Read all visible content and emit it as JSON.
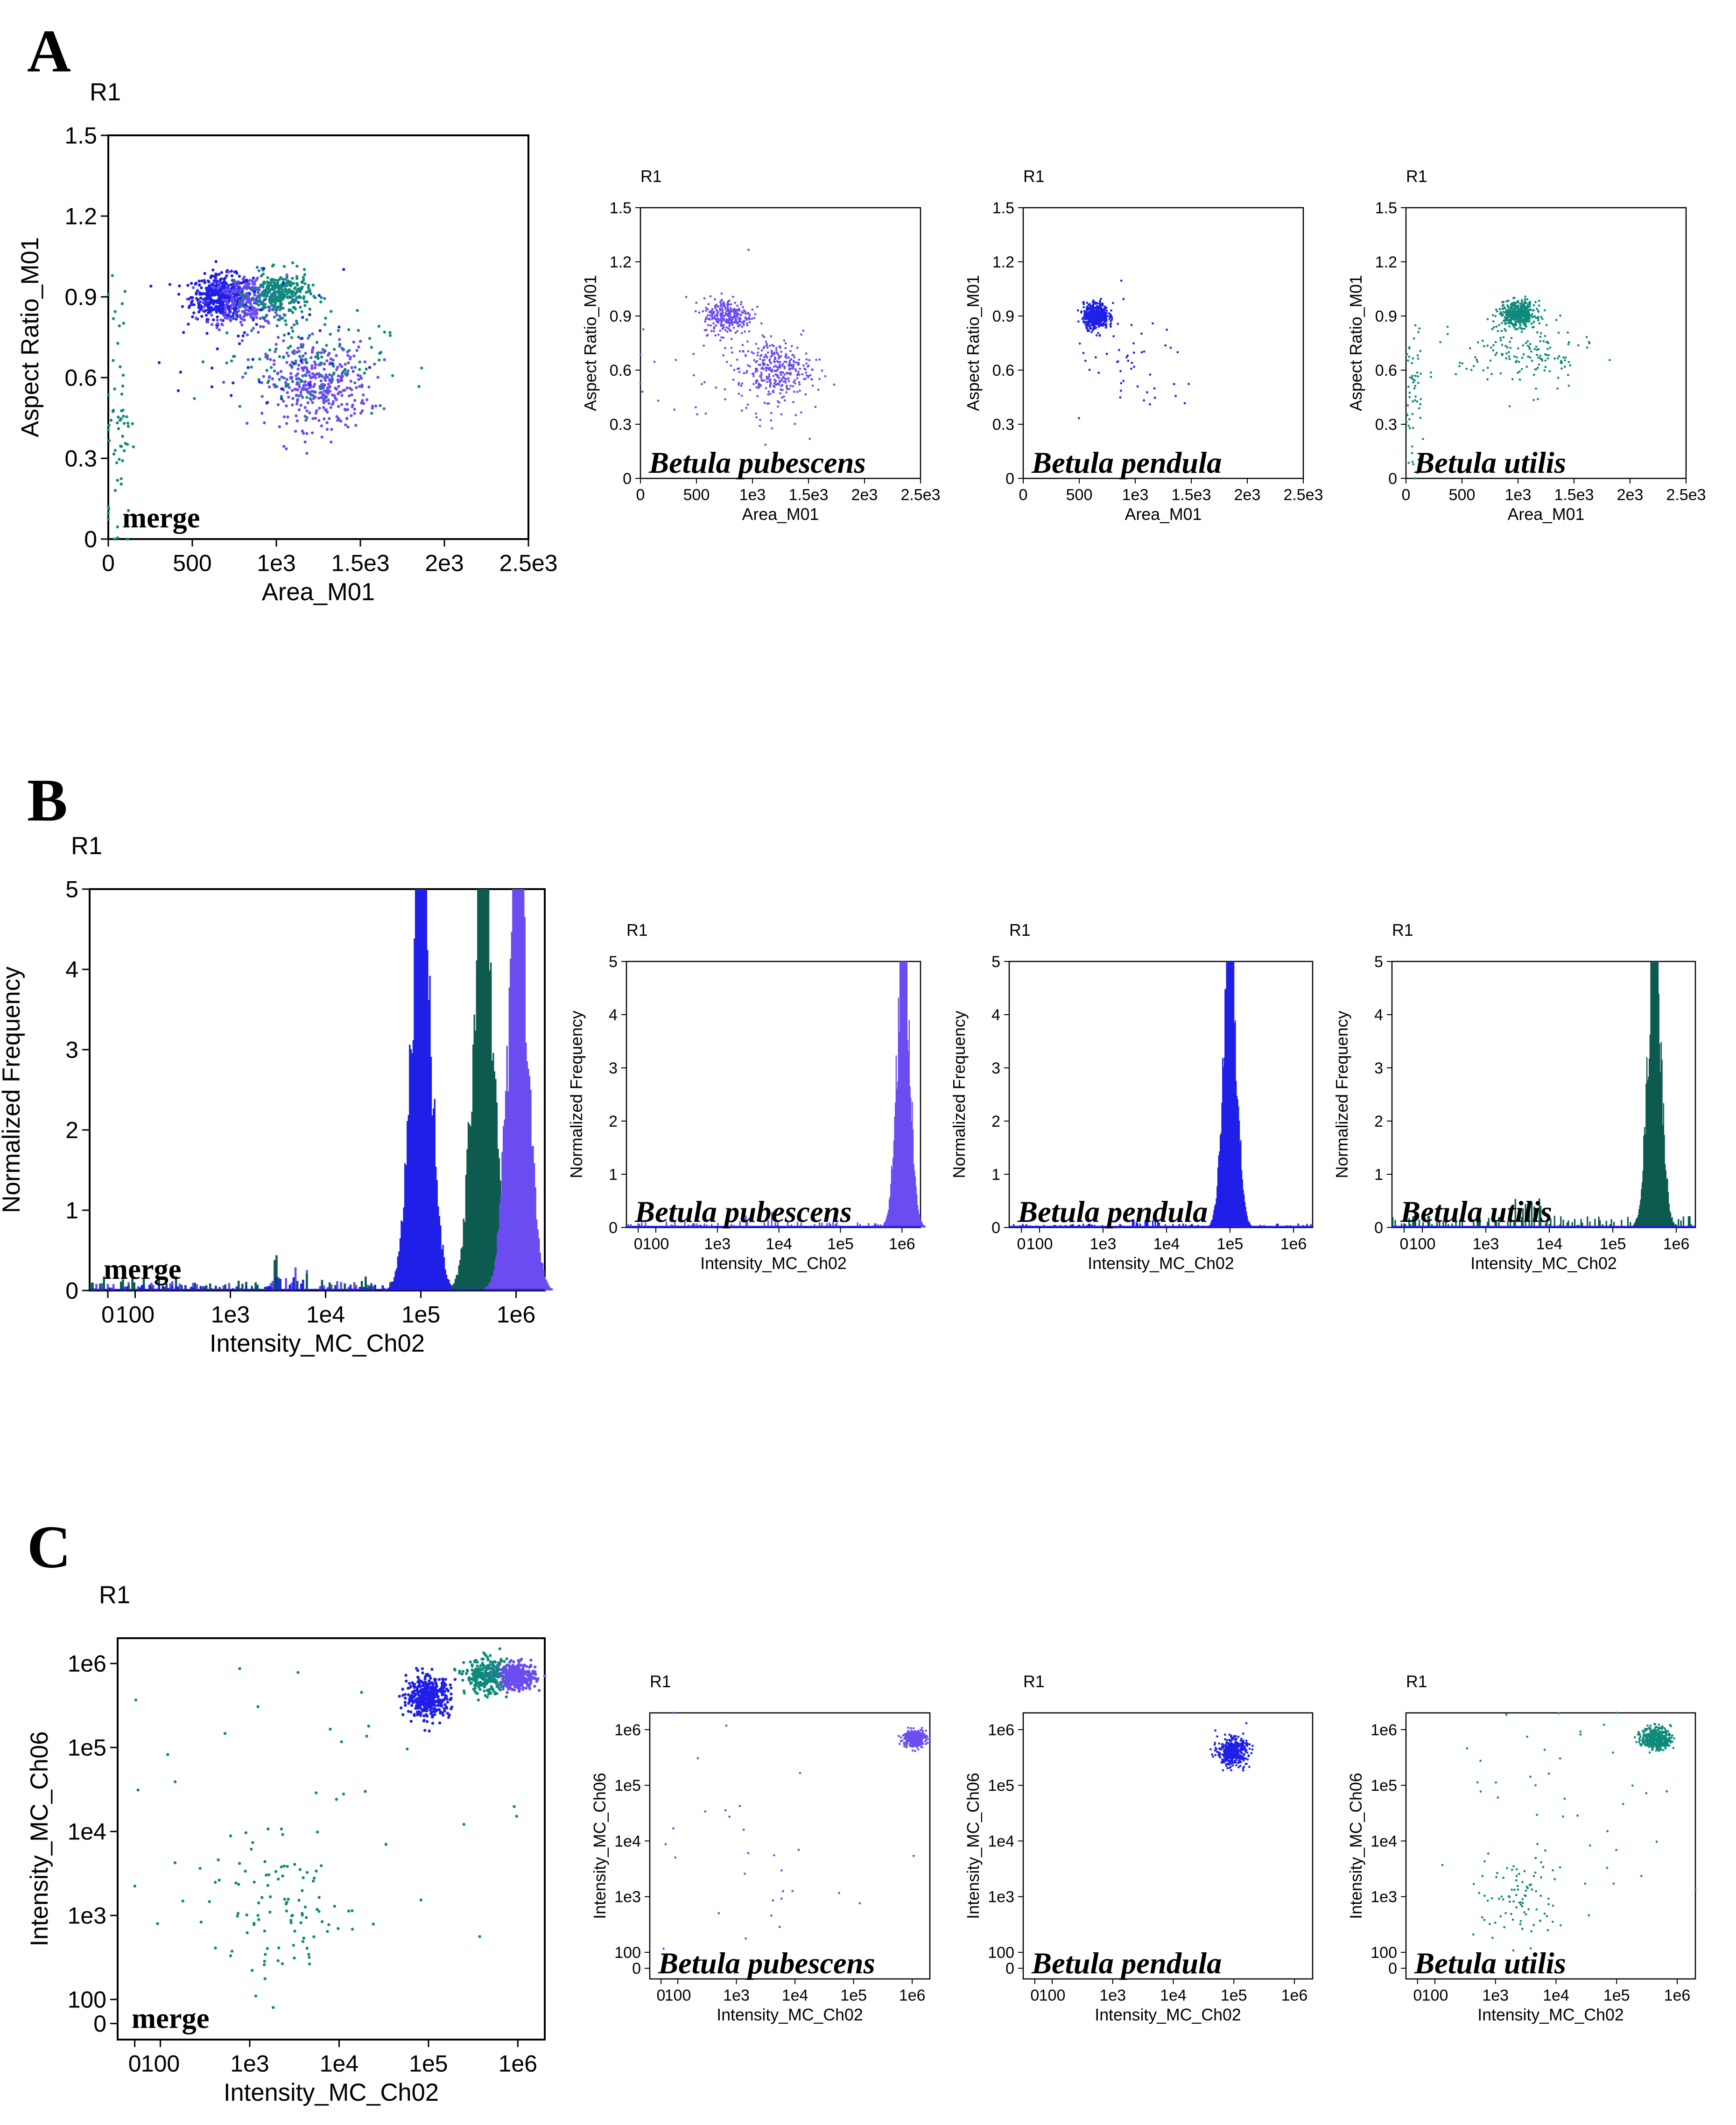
{
  "colors": {
    "pubescens": "#6a4cf0",
    "pendula": "#1f1fe8",
    "utilis": "#0f8a7a",
    "utilis_hist": "#0d5a4f"
  },
  "panels": [
    {
      "letter": "A"
    },
    {
      "letter": "B"
    },
    {
      "letter": "C"
    }
  ],
  "chart_data": [
    {
      "id": "A-merge",
      "panel": "A",
      "type": "scatter",
      "gate": "R1",
      "xlabel": "Area_M01",
      "ylabel": "Aspect Ratio_M01",
      "annotation": "merge",
      "xlim": [
        0,
        2500
      ],
      "ylim": [
        0,
        1.5
      ],
      "xticks": [
        {
          "v": 0,
          "t": "0"
        },
        {
          "v": 500,
          "t": "500"
        },
        {
          "v": 1000,
          "t": "1e3"
        },
        {
          "v": 1500,
          "t": "1.5e3"
        },
        {
          "v": 2000,
          "t": "2e3"
        },
        {
          "v": 2500,
          "t": "2.5e3"
        }
      ],
      "yticks": [
        {
          "v": 0,
          "t": "0"
        },
        {
          "v": 0.3,
          "t": "0.3"
        },
        {
          "v": 0.6,
          "t": "0.6"
        },
        {
          "v": 0.9,
          "t": "0.9"
        },
        {
          "v": 1.2,
          "t": "1.2"
        },
        {
          "v": 1.5,
          "t": "1.5"
        }
      ],
      "clusters": [
        {
          "series": "pendula",
          "n": 500,
          "cx": 680,
          "cy": 0.9,
          "sx": 90,
          "sy": 0.04
        },
        {
          "series": "pubescens",
          "n": 260,
          "cx": 820,
          "cy": 0.88,
          "sx": 120,
          "sy": 0.05
        },
        {
          "series": "pubescens",
          "n": 380,
          "cx": 1250,
          "cy": 0.57,
          "sx": 150,
          "sy": 0.08
        },
        {
          "series": "utilis",
          "n": 280,
          "cx": 1020,
          "cy": 0.91,
          "sx": 90,
          "sy": 0.04
        },
        {
          "series": "utilis",
          "n": 120,
          "cx": 1150,
          "cy": 0.66,
          "sx": 250,
          "sy": 0.09
        },
        {
          "series": "pendula",
          "n": 40,
          "cx": 900,
          "cy": 0.7,
          "sx": 250,
          "sy": 0.15
        },
        {
          "series": "utilis",
          "n": 60,
          "cx": 60,
          "cy": 0.45,
          "sx": 40,
          "sy": 0.25
        }
      ]
    },
    {
      "id": "A-pub",
      "panel": "A",
      "type": "scatter",
      "gate": "R1",
      "xlabel": "Area_M01",
      "ylabel": "Aspect Ratio_M01",
      "annotation": "Betula pubescens",
      "xlim": [
        0,
        2500
      ],
      "ylim": [
        0,
        1.5
      ],
      "xticks": [
        {
          "v": 0,
          "t": "0"
        },
        {
          "v": 500,
          "t": "500"
        },
        {
          "v": 1000,
          "t": "1e3"
        },
        {
          "v": 1500,
          "t": "1.5e3"
        },
        {
          "v": 2000,
          "t": "2e3"
        },
        {
          "v": 2500,
          "t": "2.5e3"
        }
      ],
      "yticks": [
        {
          "v": 0,
          "t": "0"
        },
        {
          "v": 0.3,
          "t": "0.3"
        },
        {
          "v": 0.6,
          "t": "0.6"
        },
        {
          "v": 0.9,
          "t": "0.9"
        },
        {
          "v": 1.2,
          "t": "1.2"
        },
        {
          "v": 1.5,
          "t": "1.5"
        }
      ],
      "clusters": [
        {
          "series": "pubescens",
          "n": 280,
          "cx": 780,
          "cy": 0.9,
          "sx": 110,
          "sy": 0.05
        },
        {
          "series": "pubescens",
          "n": 320,
          "cx": 1200,
          "cy": 0.6,
          "sx": 160,
          "sy": 0.08
        },
        {
          "series": "pubescens",
          "n": 60,
          "cx": 800,
          "cy": 0.55,
          "sx": 450,
          "sy": 0.2
        }
      ]
    },
    {
      "id": "A-pen",
      "panel": "A",
      "type": "scatter",
      "gate": "R1",
      "xlabel": "Area_M01",
      "ylabel": "Aspect Ratio_M01",
      "annotation": "Betula pendula",
      "xlim": [
        0,
        2500
      ],
      "ylim": [
        0,
        1.5
      ],
      "xticks": [
        {
          "v": 0,
          "t": "0"
        },
        {
          "v": 500,
          "t": "500"
        },
        {
          "v": 1000,
          "t": "1e3"
        },
        {
          "v": 1500,
          "t": "1.5e3"
        },
        {
          "v": 2000,
          "t": "2e3"
        },
        {
          "v": 2500,
          "t": "2.5e3"
        }
      ],
      "yticks": [
        {
          "v": 0,
          "t": "0"
        },
        {
          "v": 0.3,
          "t": "0.3"
        },
        {
          "v": 0.6,
          "t": "0.6"
        },
        {
          "v": 0.9,
          "t": "0.9"
        },
        {
          "v": 1.2,
          "t": "1.2"
        },
        {
          "v": 1.5,
          "t": "1.5"
        }
      ],
      "clusters": [
        {
          "series": "pendula",
          "n": 520,
          "cx": 650,
          "cy": 0.9,
          "sx": 55,
          "sy": 0.035
        },
        {
          "series": "pendula",
          "n": 50,
          "cx": 1000,
          "cy": 0.6,
          "sx": 300,
          "sy": 0.15
        }
      ]
    },
    {
      "id": "A-uti",
      "panel": "A",
      "type": "scatter",
      "gate": "R1",
      "xlabel": "Area_M01",
      "ylabel": "Aspect Ratio_M01",
      "annotation": "Betula utilis",
      "xlim": [
        0,
        2500
      ],
      "ylim": [
        0,
        1.5
      ],
      "xticks": [
        {
          "v": 0,
          "t": "0"
        },
        {
          "v": 500,
          "t": "500"
        },
        {
          "v": 1000,
          "t": "1e3"
        },
        {
          "v": 1500,
          "t": "1.5e3"
        },
        {
          "v": 2000,
          "t": "2e3"
        },
        {
          "v": 2500,
          "t": "2.5e3"
        }
      ],
      "yticks": [
        {
          "v": 0,
          "t": "0"
        },
        {
          "v": 0.3,
          "t": "0.3"
        },
        {
          "v": 0.6,
          "t": "0.6"
        },
        {
          "v": 0.9,
          "t": "0.9"
        },
        {
          "v": 1.2,
          "t": "1.2"
        },
        {
          "v": 1.5,
          "t": "1.5"
        }
      ],
      "clusters": [
        {
          "series": "utilis",
          "n": 450,
          "cx": 1000,
          "cy": 0.91,
          "sx": 80,
          "sy": 0.035
        },
        {
          "series": "utilis",
          "n": 150,
          "cx": 1050,
          "cy": 0.68,
          "sx": 300,
          "sy": 0.1
        },
        {
          "series": "utilis",
          "n": 60,
          "cx": 60,
          "cy": 0.45,
          "sx": 40,
          "sy": 0.2
        }
      ]
    },
    {
      "id": "B-merge",
      "panel": "B",
      "type": "histogram",
      "gate": "R1",
      "xlabel": "Intensity_MC_Ch02",
      "ylabel": "Normalized Frequency",
      "annotation": "merge",
      "xscale": "log",
      "xlim": [
        0,
        2000000
      ],
      "ylim": [
        0,
        5
      ],
      "xticks": [
        {
          "v": 0,
          "t": "0"
        },
        {
          "v": 100,
          "t": "100"
        },
        {
          "v": 1000,
          "t": "1e3"
        },
        {
          "v": 10000,
          "t": "1e4"
        },
        {
          "v": 100000,
          "t": "1e5"
        },
        {
          "v": 1000000,
          "t": "1e6"
        }
      ],
      "yticks": [
        {
          "v": 0,
          "t": "0"
        },
        {
          "v": 1,
          "t": "1"
        },
        {
          "v": 2,
          "t": "2"
        },
        {
          "v": 3,
          "t": "3"
        },
        {
          "v": 4,
          "t": "4"
        },
        {
          "v": 5,
          "t": "5"
        }
      ],
      "peaks": [
        {
          "series": "pendula",
          "center": 100000,
          "height": 5.0,
          "width": 0.06
        },
        {
          "series": "utilis_hist",
          "center": 450000,
          "height": 5.0,
          "width": 0.045
        },
        {
          "series": "pubescens",
          "center": 1050000,
          "height": 5.0,
          "width": 0.06
        }
      ],
      "noise": [
        {
          "series": "pubescens",
          "level": 0.08
        },
        {
          "series": "utilis_hist",
          "level": 0.12
        },
        {
          "series": "pendula",
          "level": 0.05
        }
      ]
    },
    {
      "id": "B-pub",
      "panel": "B",
      "type": "histogram",
      "gate": "R1",
      "xlabel": "Intensity_MC_Ch02",
      "ylabel": "Normalized Frequency",
      "annotation": "Betula pubescens",
      "xscale": "log",
      "xlim": [
        0,
        2000000
      ],
      "ylim": [
        0,
        5
      ],
      "xticks": [
        {
          "v": 0,
          "t": "0"
        },
        {
          "v": 100,
          "t": "100"
        },
        {
          "v": 1000,
          "t": "1e3"
        },
        {
          "v": 10000,
          "t": "1e4"
        },
        {
          "v": 100000,
          "t": "1e5"
        },
        {
          "v": 1000000,
          "t": "1e6"
        }
      ],
      "yticks": [
        {
          "v": 0,
          "t": "0"
        },
        {
          "v": 1,
          "t": "1"
        },
        {
          "v": 2,
          "t": "2"
        },
        {
          "v": 3,
          "t": "3"
        },
        {
          "v": 4,
          "t": "4"
        },
        {
          "v": 5,
          "t": "5"
        }
      ],
      "peaks": [
        {
          "series": "pubescens",
          "center": 1050000,
          "height": 5.0,
          "width": 0.06
        }
      ],
      "noise": [
        {
          "series": "pubescens",
          "level": 0.08
        }
      ]
    },
    {
      "id": "B-pen",
      "panel": "B",
      "type": "histogram",
      "gate": "R1",
      "xlabel": "Intensity_MC_Ch02",
      "ylabel": "Normalized Frequency",
      "annotation": "Betula pendula",
      "xscale": "log",
      "xlim": [
        0,
        2000000
      ],
      "ylim": [
        0,
        5
      ],
      "xticks": [
        {
          "v": 0,
          "t": "0"
        },
        {
          "v": 100,
          "t": "100"
        },
        {
          "v": 1000,
          "t": "1e3"
        },
        {
          "v": 10000,
          "t": "1e4"
        },
        {
          "v": 100000,
          "t": "1e5"
        },
        {
          "v": 1000000,
          "t": "1e6"
        }
      ],
      "yticks": [
        {
          "v": 0,
          "t": "0"
        },
        {
          "v": 1,
          "t": "1"
        },
        {
          "v": 2,
          "t": "2"
        },
        {
          "v": 3,
          "t": "3"
        },
        {
          "v": 4,
          "t": "4"
        },
        {
          "v": 5,
          "t": "5"
        }
      ],
      "peaks": [
        {
          "series": "pendula",
          "center": 100000,
          "height": 5.0,
          "width": 0.06
        }
      ],
      "noise": [
        {
          "series": "pendula",
          "level": 0.05
        }
      ]
    },
    {
      "id": "B-uti",
      "panel": "B",
      "type": "histogram",
      "gate": "R1",
      "xlabel": "Intensity_MC_Ch02",
      "ylabel": "Normalized Frequency",
      "annotation": "Betula utilis",
      "xscale": "log",
      "xlim": [
        0,
        2000000
      ],
      "ylim": [
        0,
        5
      ],
      "xticks": [
        {
          "v": 0,
          "t": "0"
        },
        {
          "v": 100,
          "t": "100"
        },
        {
          "v": 1000,
          "t": "1e3"
        },
        {
          "v": 10000,
          "t": "1e4"
        },
        {
          "v": 100000,
          "t": "1e5"
        },
        {
          "v": 1000000,
          "t": "1e6"
        }
      ],
      "yticks": [
        {
          "v": 0,
          "t": "0"
        },
        {
          "v": 1,
          "t": "1"
        },
        {
          "v": 2,
          "t": "2"
        },
        {
          "v": 3,
          "t": "3"
        },
        {
          "v": 4,
          "t": "4"
        },
        {
          "v": 5,
          "t": "5"
        }
      ],
      "peaks": [
        {
          "series": "utilis_hist",
          "center": 450000,
          "height": 5.0,
          "width": 0.045
        }
      ],
      "noise": [
        {
          "series": "utilis_hist",
          "level": 0.15
        }
      ]
    },
    {
      "id": "C-merge",
      "panel": "C",
      "type": "scatter",
      "gate": "R1",
      "xlabel": "Intensity_MC_Ch02",
      "ylabel": "Intensity_MC_Ch06",
      "annotation": "merge",
      "xscale": "log",
      "yscale": "log",
      "xlim": [
        0,
        2000000
      ],
      "ylim": [
        0,
        2000000
      ],
      "xticks": [
        {
          "v": 0,
          "t": "0"
        },
        {
          "v": 100,
          "t": "100"
        },
        {
          "v": 1000,
          "t": "1e3"
        },
        {
          "v": 10000,
          "t": "1e4"
        },
        {
          "v": 100000,
          "t": "1e5"
        },
        {
          "v": 1000000,
          "t": "1e6"
        }
      ],
      "yticks": [
        {
          "v": 0,
          "t": "0"
        },
        {
          "v": 100,
          "t": "100"
        },
        {
          "v": 1000,
          "t": "1e3"
        },
        {
          "v": 10000,
          "t": "1e4"
        },
        {
          "v": 100000,
          "t": "1e5"
        },
        {
          "v": 1000000,
          "t": "1e6"
        }
      ],
      "clusters": [
        {
          "series": "pendula",
          "n": 450,
          "cx": 100000,
          "cy": 400000,
          "sx": 0.12,
          "sy": 0.12
        },
        {
          "series": "utilis",
          "n": 300,
          "cx": 450000,
          "cy": 700000,
          "sx": 0.12,
          "sy": 0.1
        },
        {
          "series": "pubescens",
          "n": 300,
          "cx": 1000000,
          "cy": 700000,
          "sx": 0.1,
          "sy": 0.08
        },
        {
          "series": "utilis",
          "n": 90,
          "cx": 2500,
          "cy": 1000,
          "sx": 0.4,
          "sy": 0.4
        },
        {
          "series": "utilis",
          "n": 40,
          "cx": 3000,
          "cy": 20000,
          "sx": 1.2,
          "sy": 1.0
        }
      ]
    },
    {
      "id": "C-pub",
      "panel": "C",
      "type": "scatter",
      "gate": "R1",
      "xlabel": "Intensity_MC_Ch02",
      "ylabel": "Intensity_MC_Ch06",
      "annotation": "Betula pubescens",
      "xscale": "log",
      "yscale": "log",
      "xlim": [
        0,
        2000000
      ],
      "ylim": [
        0,
        2000000
      ],
      "xticks": [
        {
          "v": 0,
          "t": "0"
        },
        {
          "v": 100,
          "t": "100"
        },
        {
          "v": 1000,
          "t": "1e3"
        },
        {
          "v": 10000,
          "t": "1e4"
        },
        {
          "v": 100000,
          "t": "1e5"
        },
        {
          "v": 1000000,
          "t": "1e6"
        }
      ],
      "yticks": [
        {
          "v": 0,
          "t": "0"
        },
        {
          "v": 100,
          "t": "100"
        },
        {
          "v": 1000,
          "t": "1e3"
        },
        {
          "v": 10000,
          "t": "1e4"
        },
        {
          "v": 100000,
          "t": "1e5"
        },
        {
          "v": 1000000,
          "t": "1e6"
        }
      ],
      "clusters": [
        {
          "series": "pubescens",
          "n": 320,
          "cx": 1100000,
          "cy": 700000,
          "sx": 0.1,
          "sy": 0.08
        },
        {
          "series": "pubescens",
          "n": 30,
          "cx": 3000,
          "cy": 3000,
          "sx": 1.0,
          "sy": 1.0
        }
      ]
    },
    {
      "id": "C-pen",
      "panel": "C",
      "type": "scatter",
      "gate": "R1",
      "xlabel": "Intensity_MC_Ch02",
      "ylabel": "Intensity_MC_Ch06",
      "annotation": "Betula pendula",
      "xscale": "log",
      "yscale": "log",
      "xlim": [
        0,
        2000000
      ],
      "ylim": [
        0,
        2000000
      ],
      "xticks": [
        {
          "v": 0,
          "t": "0"
        },
        {
          "v": 100,
          "t": "100"
        },
        {
          "v": 1000,
          "t": "1e3"
        },
        {
          "v": 10000,
          "t": "1e4"
        },
        {
          "v": 100000,
          "t": "1e5"
        },
        {
          "v": 1000000,
          "t": "1e6"
        }
      ],
      "yticks": [
        {
          "v": 0,
          "t": "0"
        },
        {
          "v": 100,
          "t": "100"
        },
        {
          "v": 1000,
          "t": "1e3"
        },
        {
          "v": 10000,
          "t": "1e4"
        },
        {
          "v": 100000,
          "t": "1e5"
        },
        {
          "v": 1000000,
          "t": "1e6"
        }
      ],
      "clusters": [
        {
          "series": "pendula",
          "n": 450,
          "cx": 95000,
          "cy": 400000,
          "sx": 0.12,
          "sy": 0.12
        }
      ]
    },
    {
      "id": "C-uti",
      "panel": "C",
      "type": "scatter",
      "gate": "R1",
      "xlabel": "Intensity_MC_Ch02",
      "ylabel": "Intensity_MC_Ch06",
      "annotation": "Betula utilis",
      "xscale": "log",
      "yscale": "log",
      "xlim": [
        0,
        2000000
      ],
      "ylim": [
        0,
        2000000
      ],
      "xticks": [
        {
          "v": 0,
          "t": "0"
        },
        {
          "v": 100,
          "t": "100"
        },
        {
          "v": 1000,
          "t": "1e3"
        },
        {
          "v": 10000,
          "t": "1e4"
        },
        {
          "v": 100000,
          "t": "1e5"
        },
        {
          "v": 1000000,
          "t": "1e6"
        }
      ],
      "yticks": [
        {
          "v": 0,
          "t": "0"
        },
        {
          "v": 100,
          "t": "100"
        },
        {
          "v": 1000,
          "t": "1e3"
        },
        {
          "v": 10000,
          "t": "1e4"
        },
        {
          "v": 100000,
          "t": "1e5"
        },
        {
          "v": 1000000,
          "t": "1e6"
        }
      ],
      "clusters": [
        {
          "series": "utilis",
          "n": 400,
          "cx": 450000,
          "cy": 700000,
          "sx": 0.12,
          "sy": 0.1
        },
        {
          "series": "utilis",
          "n": 90,
          "cx": 2500,
          "cy": 1000,
          "sx": 0.35,
          "sy": 0.4
        },
        {
          "series": "utilis",
          "n": 40,
          "cx": 20000,
          "cy": 30000,
          "sx": 1.0,
          "sy": 1.0
        }
      ]
    }
  ]
}
